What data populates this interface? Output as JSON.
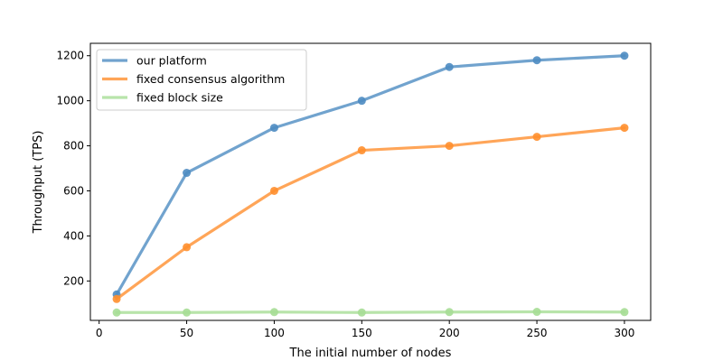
{
  "chart_data": {
    "type": "line",
    "xlabel": "The initial number of nodes",
    "ylabel": "Throughput (TPS)",
    "xlim": [
      -5,
      315
    ],
    "ylim": [
      25,
      1255
    ],
    "x_ticks": [
      0,
      50,
      100,
      150,
      200,
      250,
      300
    ],
    "y_ticks": [
      200,
      400,
      600,
      800,
      1000,
      1200
    ],
    "grid": false,
    "legend_position": "top-left",
    "x": [
      10,
      50,
      100,
      150,
      200,
      250,
      300
    ],
    "series": [
      {
        "name": "our platform",
        "color": "#4e8cc2",
        "values": [
          140,
          680,
          880,
          1000,
          1150,
          1180,
          1200
        ]
      },
      {
        "name": "fixed consensus algorithm",
        "color": "#ff8f2e",
        "values": [
          120,
          350,
          600,
          780,
          800,
          840,
          880
        ]
      },
      {
        "name": "fixed block size",
        "color": "#a6dd95",
        "values": [
          60,
          60,
          62,
          60,
          62,
          63,
          62
        ]
      }
    ]
  }
}
